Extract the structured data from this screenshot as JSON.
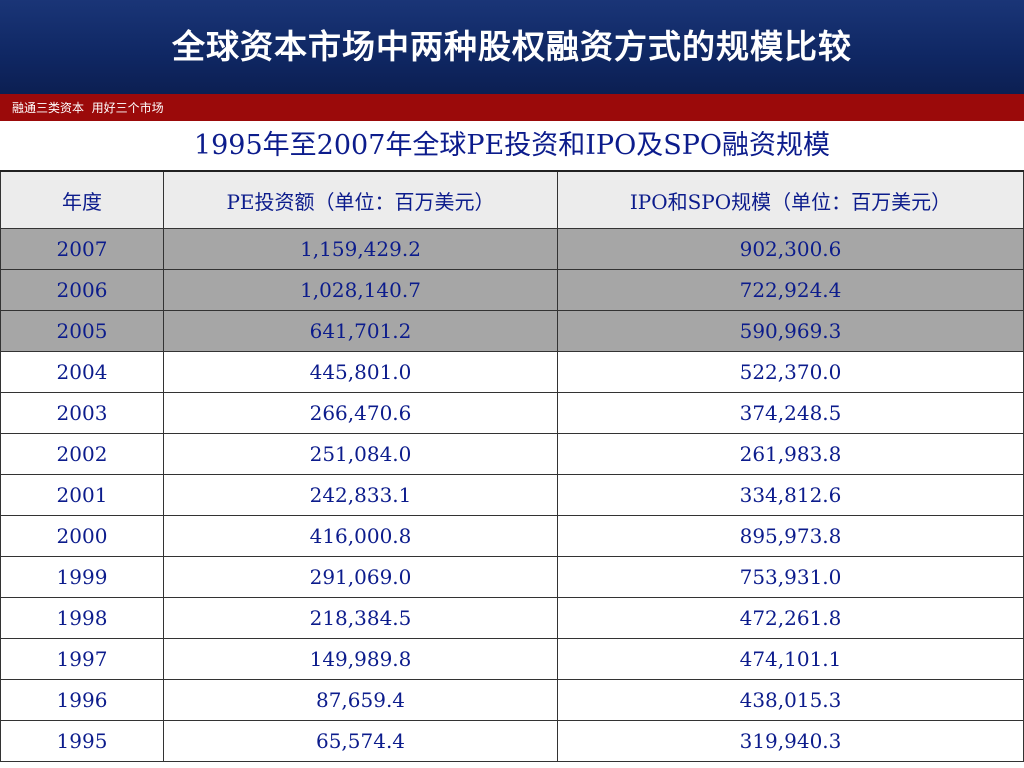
{
  "header": {
    "title": "全球资本市场中两种股权融资方式的规模比较"
  },
  "subbar": {
    "text": "融通三类资本  用好三个市场"
  },
  "table": {
    "title": "1995年至2007年全球PE投资和IPO及SPO融资规模",
    "headers": [
      "年度",
      "PE投资额（单位：百万美元）",
      "IPO和SPO规模（单位：百万美元）"
    ],
    "rows": [
      [
        "2007",
        "1,159,429.2",
        "902,300.6"
      ],
      [
        "2006",
        "1,028,140.7",
        "722,924.4"
      ],
      [
        "2005",
        "641,701.2",
        "590,969.3"
      ],
      [
        "2004",
        "445,801.0",
        "522,370.0"
      ],
      [
        "2003",
        "266,470.6",
        "374,248.5"
      ],
      [
        "2002",
        "251,084.0",
        "261,983.8"
      ],
      [
        "2001",
        "242,833.1",
        "334,812.6"
      ],
      [
        "2000",
        "416,000.8",
        "895,973.8"
      ],
      [
        "1999",
        "291,069.0",
        "753,931.0"
      ],
      [
        "1998",
        "218,384.5",
        "472,261.8"
      ],
      [
        "1997",
        "149,989.8",
        "474,101.1"
      ],
      [
        "1996",
        "87,659.4",
        "438,015.3"
      ],
      [
        "1995",
        "65,574.4",
        "319,940.3"
      ]
    ]
  },
  "colors": {
    "header_blue": "#0f2763",
    "bar_red": "#9b0a0a",
    "text_blue": "#0c1c8c",
    "shaded_row": "#a6a6a6"
  }
}
